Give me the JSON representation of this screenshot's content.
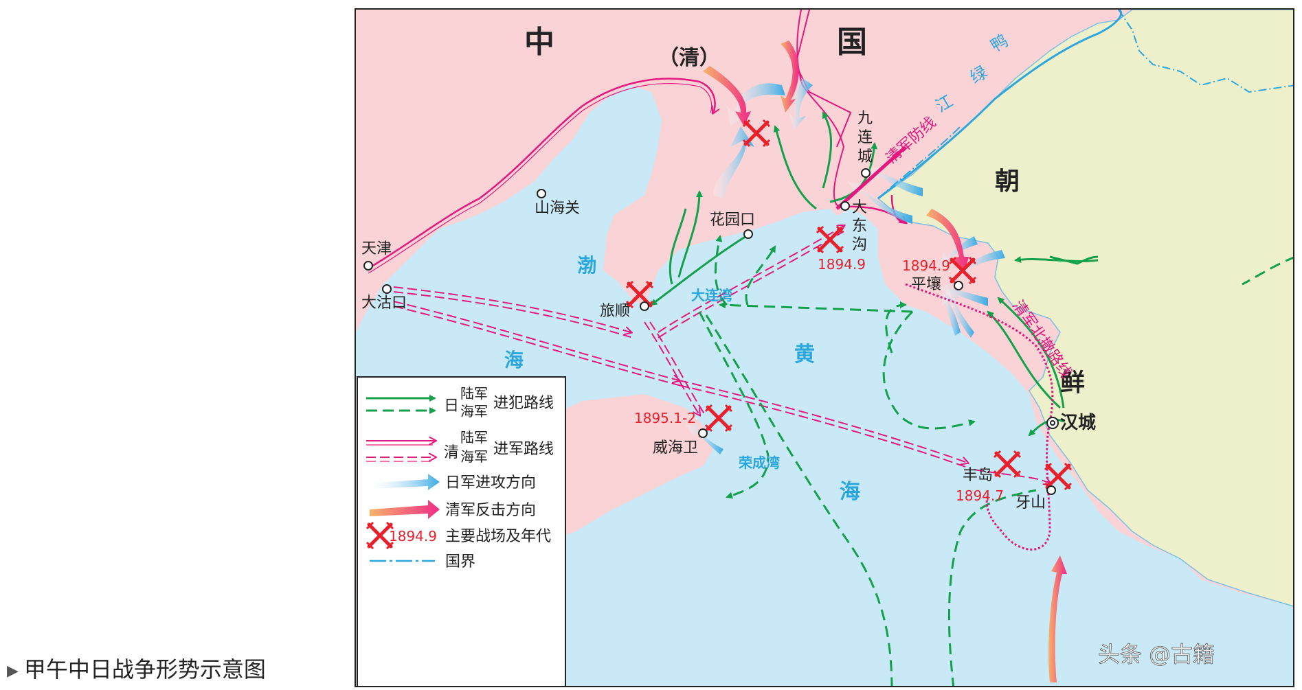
{
  "caption": "甲午中日战争形势示意图",
  "caption_marker": "▶",
  "regions": {
    "china_zhong": "中",
    "china_guo": "国",
    "qing": "（清）",
    "korea_chao": "朝",
    "korea_xian": "鲜"
  },
  "seas": {
    "bohai_1": "渤",
    "bohai_2": "海",
    "huanghai_1": "黄",
    "huanghai_2": "海"
  },
  "river": [
    "鸭",
    "绿",
    "江"
  ],
  "defense_line": "清军防线",
  "north_route": "清军北撤路线",
  "bays": {
    "dalian": "大连湾",
    "rongcheng": "荣成湾"
  },
  "places": {
    "tianjin": "天津",
    "dagukou": "大沽口",
    "shanhaiguan": "山海关",
    "huayuankou": "花园口",
    "lushun": "旅顺",
    "jiuliancheng": [
      "九",
      "连",
      "城"
    ],
    "dadonggou": [
      "大",
      "东",
      "沟"
    ],
    "pingrang": "平壤",
    "hancheng": "汉城",
    "fengdao": "丰岛",
    "yashan": "牙山",
    "weihaiwei": "威海卫"
  },
  "battle_dates": {
    "dadonggou": "1894.9",
    "pingrang": "1894.9",
    "weihaiwei": "1895.1-2",
    "fengdao": "1894.7"
  },
  "legend": {
    "japan_char": "日",
    "qing_char": "清",
    "army": "陆军",
    "navy": "海军",
    "japan_route": "进犯路线",
    "qing_route": "进军路线",
    "japan_attack": "日军进攻方向",
    "qing_counter": "清军反击方向",
    "battle_date": "1894.9",
    "battle_label": "主要战场及年代",
    "border": "国界"
  },
  "watermark": "头条 @古籍",
  "colors": {
    "china": "#f9d3d6",
    "korea": "#eef0cc",
    "sea": "#c9e9f6",
    "japan_route": "#12a04a",
    "qing_route": "#e5177e",
    "attack": "#3aa9e3",
    "battle": "#e8202c",
    "border": "#2aa6dc"
  }
}
